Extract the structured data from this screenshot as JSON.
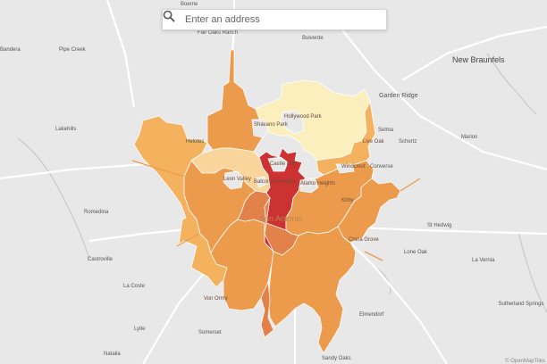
{
  "search": {
    "placeholder": "Enter an address",
    "icon": "search-icon"
  },
  "colors": {
    "background": "#e8e8e8",
    "highway": "#ffffff",
    "water": "#c9c9c9",
    "district_darkred": "#cc3232",
    "district_orange_dark": "#e2824a",
    "district_orange": "#ec9b4c",
    "district_orange_light": "#f4b25e",
    "district_peach": "#f9d49b",
    "district_cream": "#fbefbe",
    "boundary": "#ffffff"
  },
  "labels": {
    "boerne": "Boerne",
    "fair_oaks_ranch": "Fair Oaks Ranch",
    "bulverde": "Bulverde",
    "pipe_creek": "Pipe Creek",
    "bandera": "Bandera",
    "new_braunfels": "New Braunfels",
    "garden_ridge": "Garden Ridge",
    "selma": "Selma",
    "schertz": "Schertz",
    "live_oak": "Live Oak",
    "marion": "Marion",
    "lakehills": "Lakehills",
    "helotes": "Helotes",
    "shavano_park": "Shavano Park",
    "hollywood_park": "Hollywood Park",
    "castle_hills": "Castle Hills",
    "windcrest": "Windcrest",
    "converse": "Converse",
    "leon_valley": "Leon Valley",
    "balcones_heights": "Balcones Heights",
    "alamo_heights": "Alamo Heights",
    "kirby": "Kirby",
    "san_antonio": "San Antonio",
    "st_hedwig": "St Hedwig",
    "china_grove": "China Grove",
    "lone_oak": "Lone Oak",
    "la_vernia": "La Vernia",
    "romedina": "Romedina",
    "castroville": "Castroville",
    "la_coste": "La Coste",
    "von_ormy": "Von Ormy",
    "elmendorf": "Elmendorf",
    "sutherland_springs": "Sutherland Springs",
    "lytle": "Lytle",
    "somerset": "Somerset",
    "natalia": "Natalia",
    "sandy_oaks": "Sandy Oaks",
    "attribution": "© OpenMapTiles"
  }
}
